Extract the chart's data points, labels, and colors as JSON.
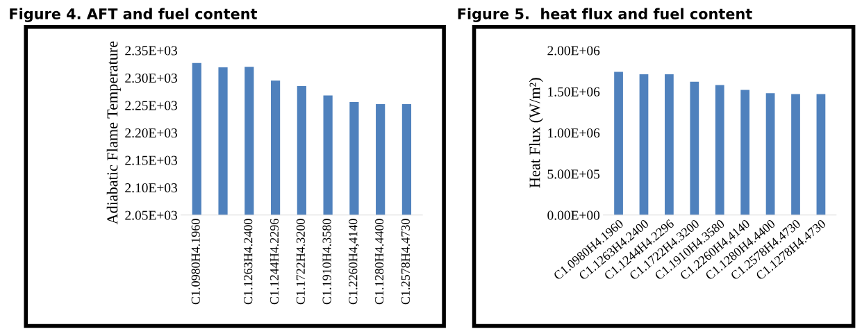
{
  "chart_data": [
    {
      "type": "bar",
      "title": "Figure 4. AFT and fuel content",
      "ylabel": "Adiabatic Flame Temperature",
      "categories": [
        "C1.0980H4.1960",
        null,
        "C1.1263H4.2400",
        "C1.1244H4.2296",
        "C1.1722H4.3200",
        "C1.1910H4.3580",
        "C1.2260H4,4140",
        "C1.1280H4.4400",
        "C1.2578H4.4730"
      ],
      "values": [
        2327,
        2319,
        2320,
        2295,
        2285,
        2268,
        2256,
        2252,
        2252
      ],
      "color": "#4f81bd",
      "ylim": [
        2050,
        2350
      ],
      "yticks": [
        {
          "value": 2050,
          "label": "2.05E+03"
        },
        {
          "value": 2100,
          "label": "2.10E+03"
        },
        {
          "value": 2150,
          "label": "2.15E+03"
        },
        {
          "value": 2200,
          "label": "2.20E+03"
        },
        {
          "value": 2250,
          "label": "2.25E+03"
        },
        {
          "value": 2300,
          "label": "2.30E+03"
        },
        {
          "value": 2350,
          "label": "2.35E+03"
        }
      ],
      "grid": false
    },
    {
      "type": "bar",
      "title": "Figure 5.  heat flux and fuel content",
      "ylabel": "Heat Flux (W/m²)",
      "categories": [
        "C1.0980H4.1960",
        "C1.1263H4.2400",
        "C1.1244H4.2296",
        "C1.1722H4.3200",
        "C1.1910H4.3580",
        "C1.2260H4,4140",
        "C1.1280H4.4400",
        "C1.2578H4.4730",
        "C1.1278H4.4730"
      ],
      "values": [
        1740000,
        1710000,
        1710000,
        1620000,
        1580000,
        1520000,
        1480000,
        1470000,
        1470000
      ],
      "color": "#4f81bd",
      "ylim": [
        0,
        2000000
      ],
      "yticks": [
        {
          "value": 0,
          "label": "0.00E+00"
        },
        {
          "value": 500000,
          "label": "5.00E+05"
        },
        {
          "value": 1000000,
          "label": "1.00E+06"
        },
        {
          "value": 1500000,
          "label": "1.50E+06"
        },
        {
          "value": 2000000,
          "label": "2.00E+06"
        }
      ],
      "grid": false
    }
  ]
}
